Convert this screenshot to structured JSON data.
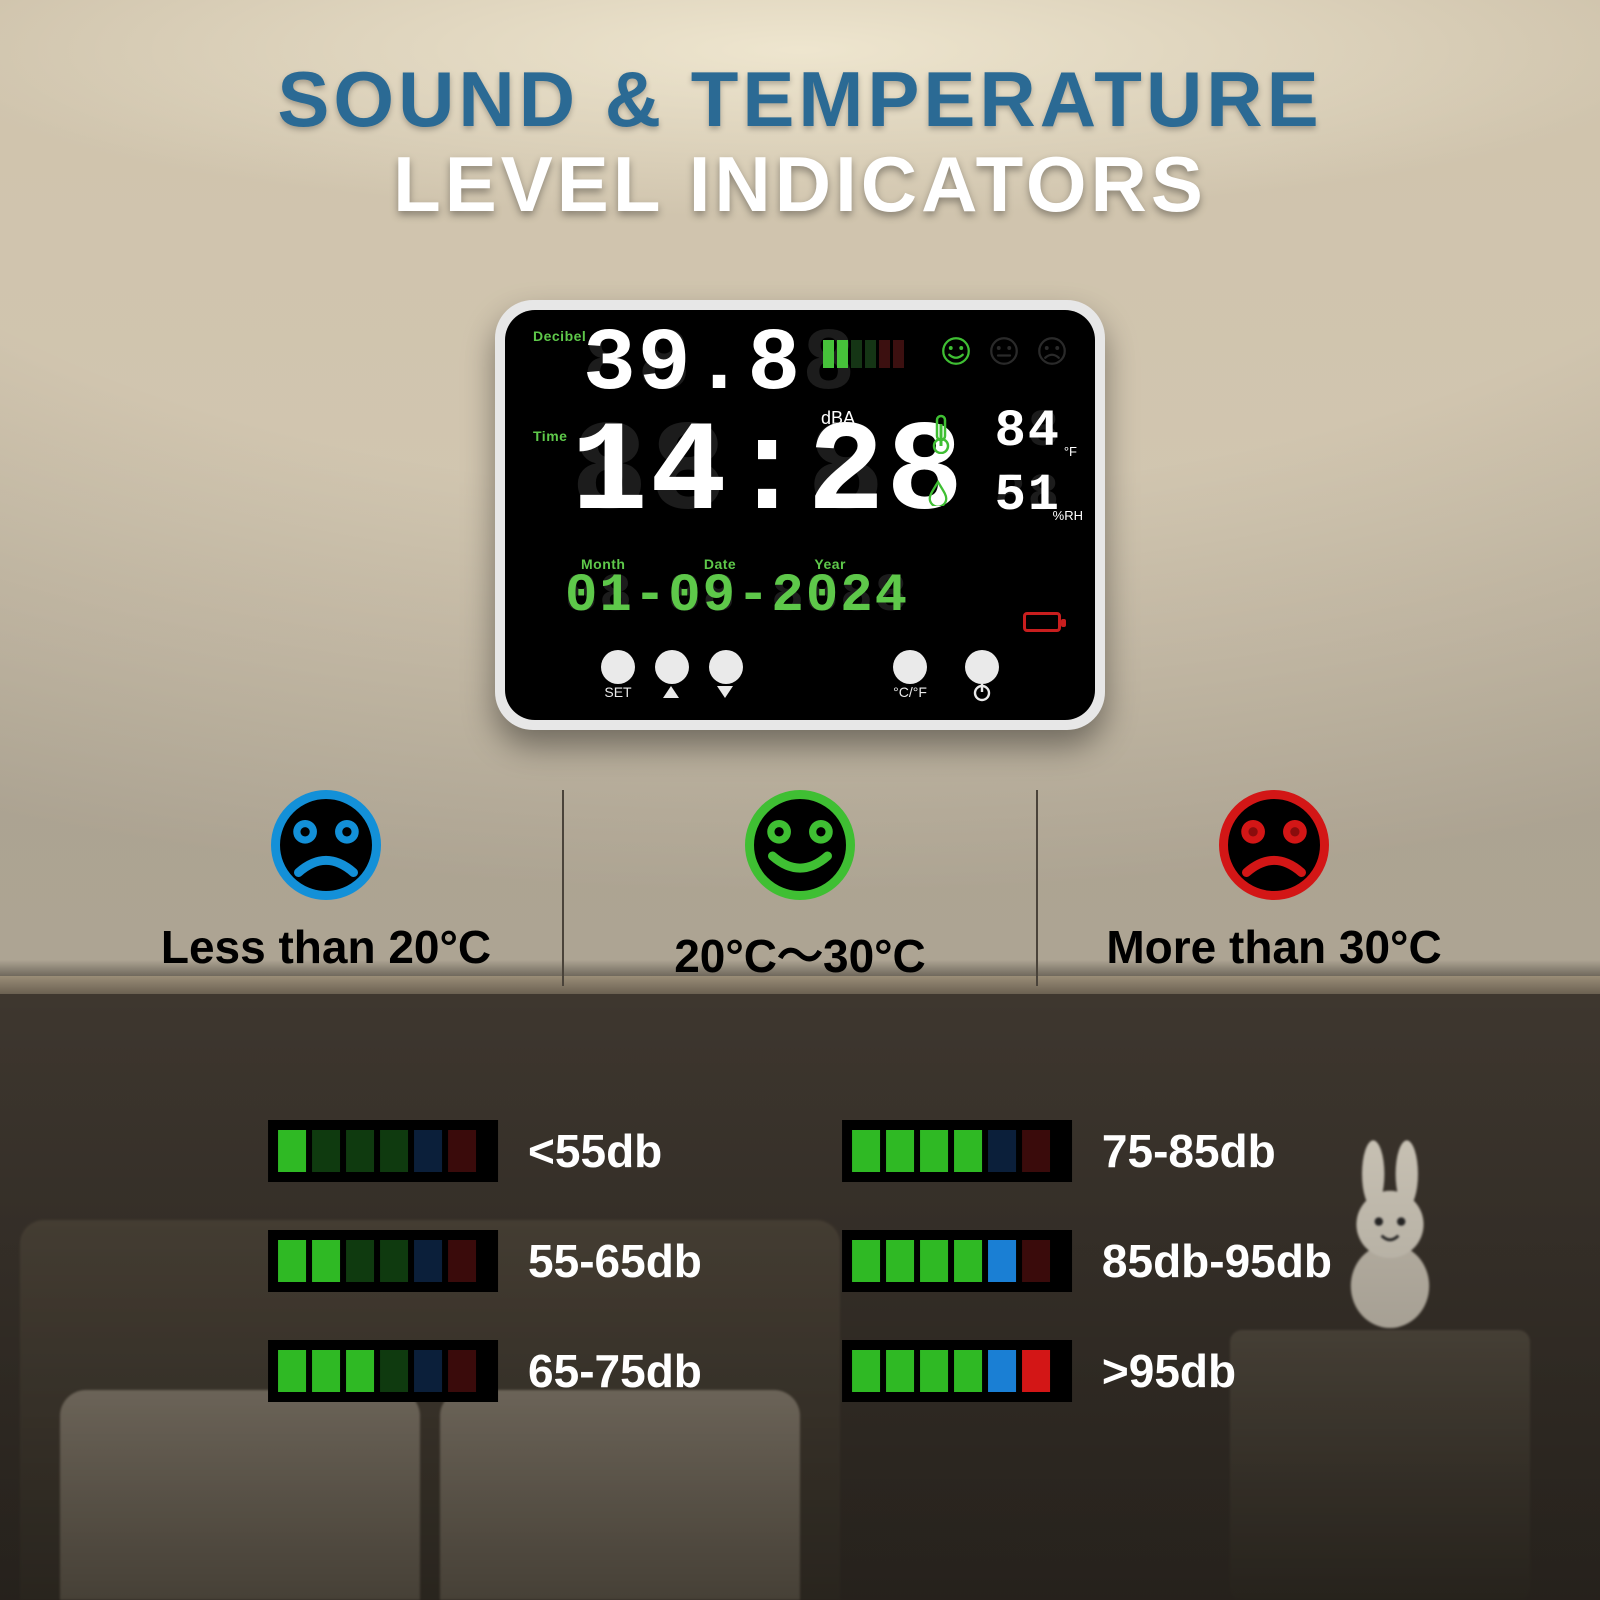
{
  "headline": {
    "line1": "SOUND & TEMPERATURE",
    "line2": "LEVEL INDICATORS",
    "line1_color": "#2b6a94",
    "line2_color": "#ffffff",
    "font_size": 78
  },
  "device": {
    "labels": {
      "decibel": "Decibel",
      "time": "Time",
      "month": "Month",
      "date": "Date",
      "year": "Year",
      "dba": "dBA",
      "set": "SET",
      "cf": "°C/°F"
    },
    "decibel_value": "39.8",
    "time_value": "14:28",
    "date_value": "01-09-2024",
    "temp_value": "84",
    "temp_unit": "°F",
    "humidity_value": "51",
    "humidity_unit": "%RH",
    "ghost_pattern_4": "88.88",
    "ghost_time": "88:88",
    "ghost_date": "88-88-8888",
    "ghost_2": "88",
    "meter_colors": [
      "#46c23a",
      "#46c23a",
      "#153515",
      "#153515",
      "#3c1010",
      "#3c1010"
    ],
    "date_color": "#5ec84a"
  },
  "temp_indicators": [
    {
      "mood": "sad",
      "ring": "#1390d8",
      "eyes": "#000000",
      "label": "Less than 20°C"
    },
    {
      "mood": "happy",
      "ring": "#3fbf33",
      "eyes": "#000000",
      "label": "20°C～30°C"
    },
    {
      "mood": "sad",
      "ring": "#d31616",
      "eyes": "#8a0c0c",
      "label": "More than 30°C"
    }
  ],
  "sound_levels": [
    {
      "label": "<55db",
      "bars": [
        "#2fb924",
        "#0f3a0f",
        "#0f3a0f",
        "#0f3a0f",
        "#0b1f3a",
        "#3a0b0b"
      ]
    },
    {
      "label": "75-85db",
      "bars": [
        "#2fb924",
        "#2fb924",
        "#2fb924",
        "#2fb924",
        "#0b1f3a",
        "#3a0b0b"
      ]
    },
    {
      "label": "55-65db",
      "bars": [
        "#2fb924",
        "#2fb924",
        "#0f3a0f",
        "#0f3a0f",
        "#0b1f3a",
        "#3a0b0b"
      ]
    },
    {
      "label": "85db-95db",
      "bars": [
        "#2fb924",
        "#2fb924",
        "#2fb924",
        "#2fb924",
        "#1a7fd4",
        "#3a0b0b"
      ]
    },
    {
      "label": "65-75db",
      "bars": [
        "#2fb924",
        "#2fb924",
        "#2fb924",
        "#0f3a0f",
        "#0b1f3a",
        "#3a0b0b"
      ]
    },
    {
      "label": ">95db",
      "bars": [
        "#2fb924",
        "#2fb924",
        "#2fb924",
        "#2fb924",
        "#1a7fd4",
        "#d31616"
      ]
    }
  ],
  "colors": {
    "wall": "#d3c8b3",
    "wall_dark": "#3a332b",
    "label_green": "#5ec84a"
  }
}
